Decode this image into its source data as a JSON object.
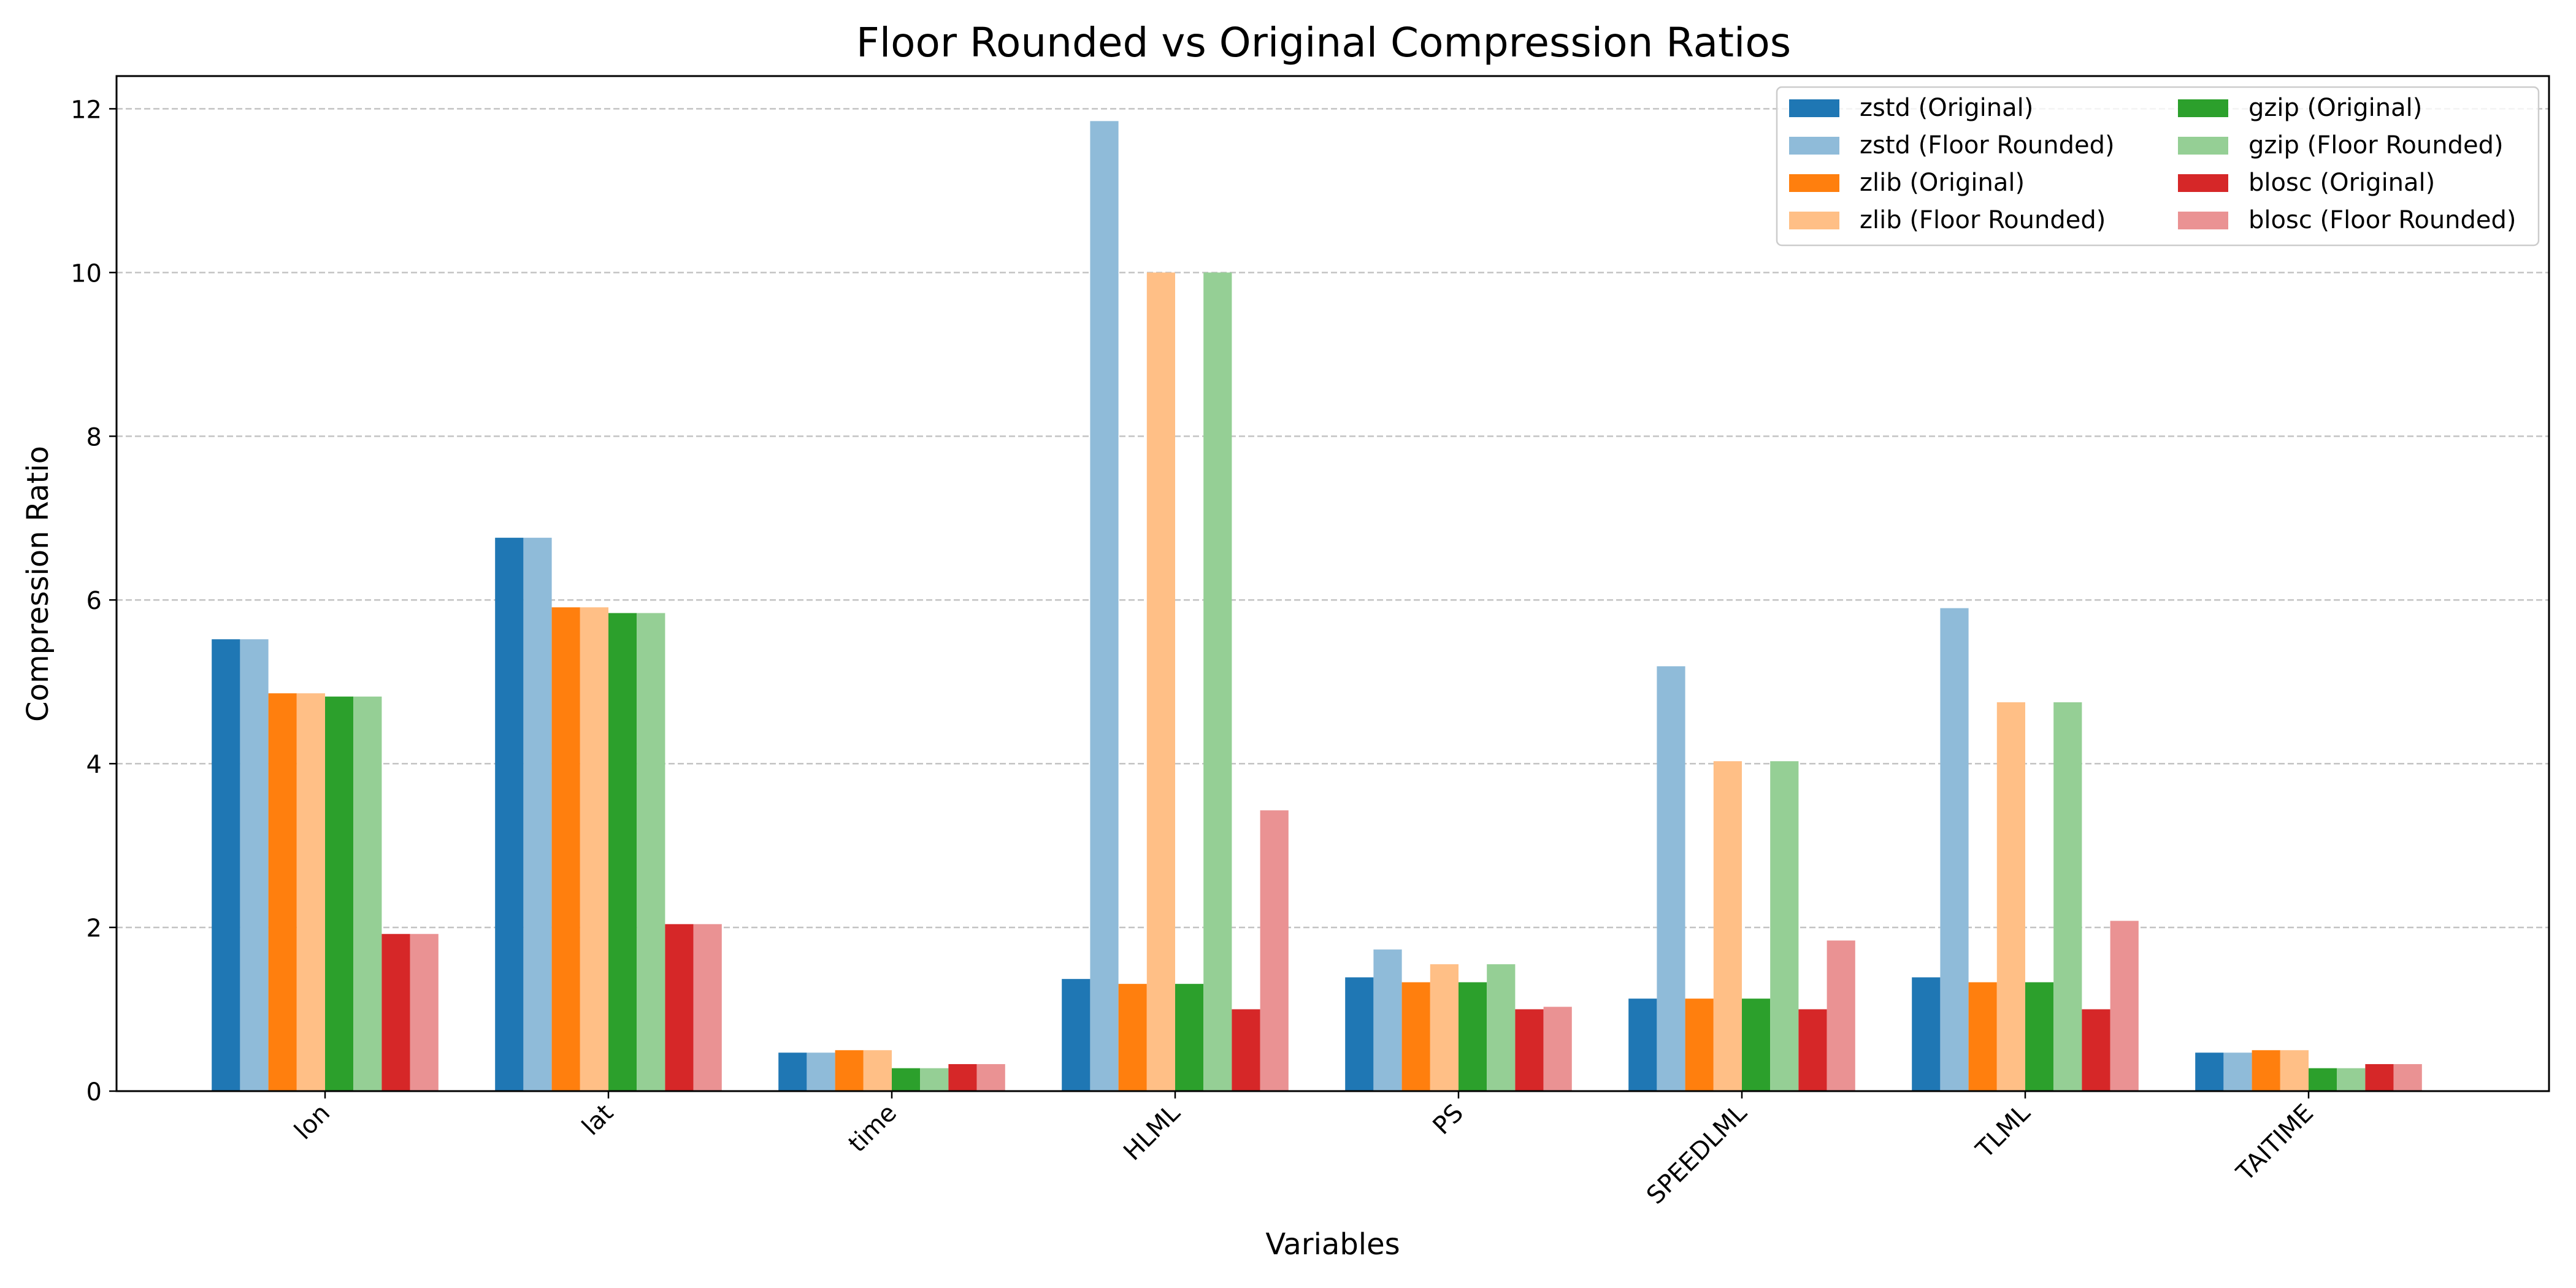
{
  "chart_data": {
    "type": "bar",
    "title": "Floor Rounded vs Original Compression Ratios",
    "xlabel": "Variables",
    "ylabel": "Compression Ratio",
    "categories": [
      "lon",
      "lat",
      "time",
      "HLML",
      "PS",
      "SPEEDLML",
      "TLML",
      "TAITIME"
    ],
    "ylim": [
      0,
      12.4
    ],
    "yticks": [
      0,
      2,
      4,
      6,
      8,
      10,
      12
    ],
    "grid": "y-dashed",
    "legend": {
      "placement": "top-right",
      "columns": 2
    },
    "series": [
      {
        "name": "zstd (Original)",
        "color": "#1f77b4",
        "values": [
          5.52,
          6.76,
          0.47,
          1.37,
          1.39,
          1.13,
          1.39,
          0.47
        ]
      },
      {
        "name": "zstd (Floor Rounded)",
        "color": "#8fbbd9",
        "values": [
          5.52,
          6.76,
          0.47,
          11.85,
          1.73,
          5.19,
          5.9,
          0.47
        ]
      },
      {
        "name": "zlib (Original)",
        "color": "#ff7f0e",
        "values": [
          4.86,
          5.91,
          0.5,
          1.31,
          1.33,
          1.13,
          1.33,
          0.5
        ]
      },
      {
        "name": "zlib (Floor Rounded)",
        "color": "#ffbf86",
        "values": [
          4.86,
          5.91,
          0.5,
          10.0,
          1.55,
          4.03,
          4.75,
          0.5
        ]
      },
      {
        "name": "gzip (Original)",
        "color": "#2ca02c",
        "values": [
          4.82,
          5.84,
          0.28,
          1.31,
          1.33,
          1.13,
          1.33,
          0.28
        ]
      },
      {
        "name": "gzip (Floor Rounded)",
        "color": "#95cf95",
        "values": [
          4.82,
          5.84,
          0.28,
          10.0,
          1.55,
          4.03,
          4.75,
          0.28
        ]
      },
      {
        "name": "blosc (Original)",
        "color": "#d62728",
        "values": [
          1.92,
          2.04,
          0.33,
          1.0,
          1.0,
          1.0,
          1.0,
          0.33
        ]
      },
      {
        "name": "blosc (Floor Rounded)",
        "color": "#ea9293",
        "values": [
          1.92,
          2.04,
          0.33,
          3.43,
          1.03,
          1.84,
          2.08,
          0.33
        ]
      }
    ]
  }
}
